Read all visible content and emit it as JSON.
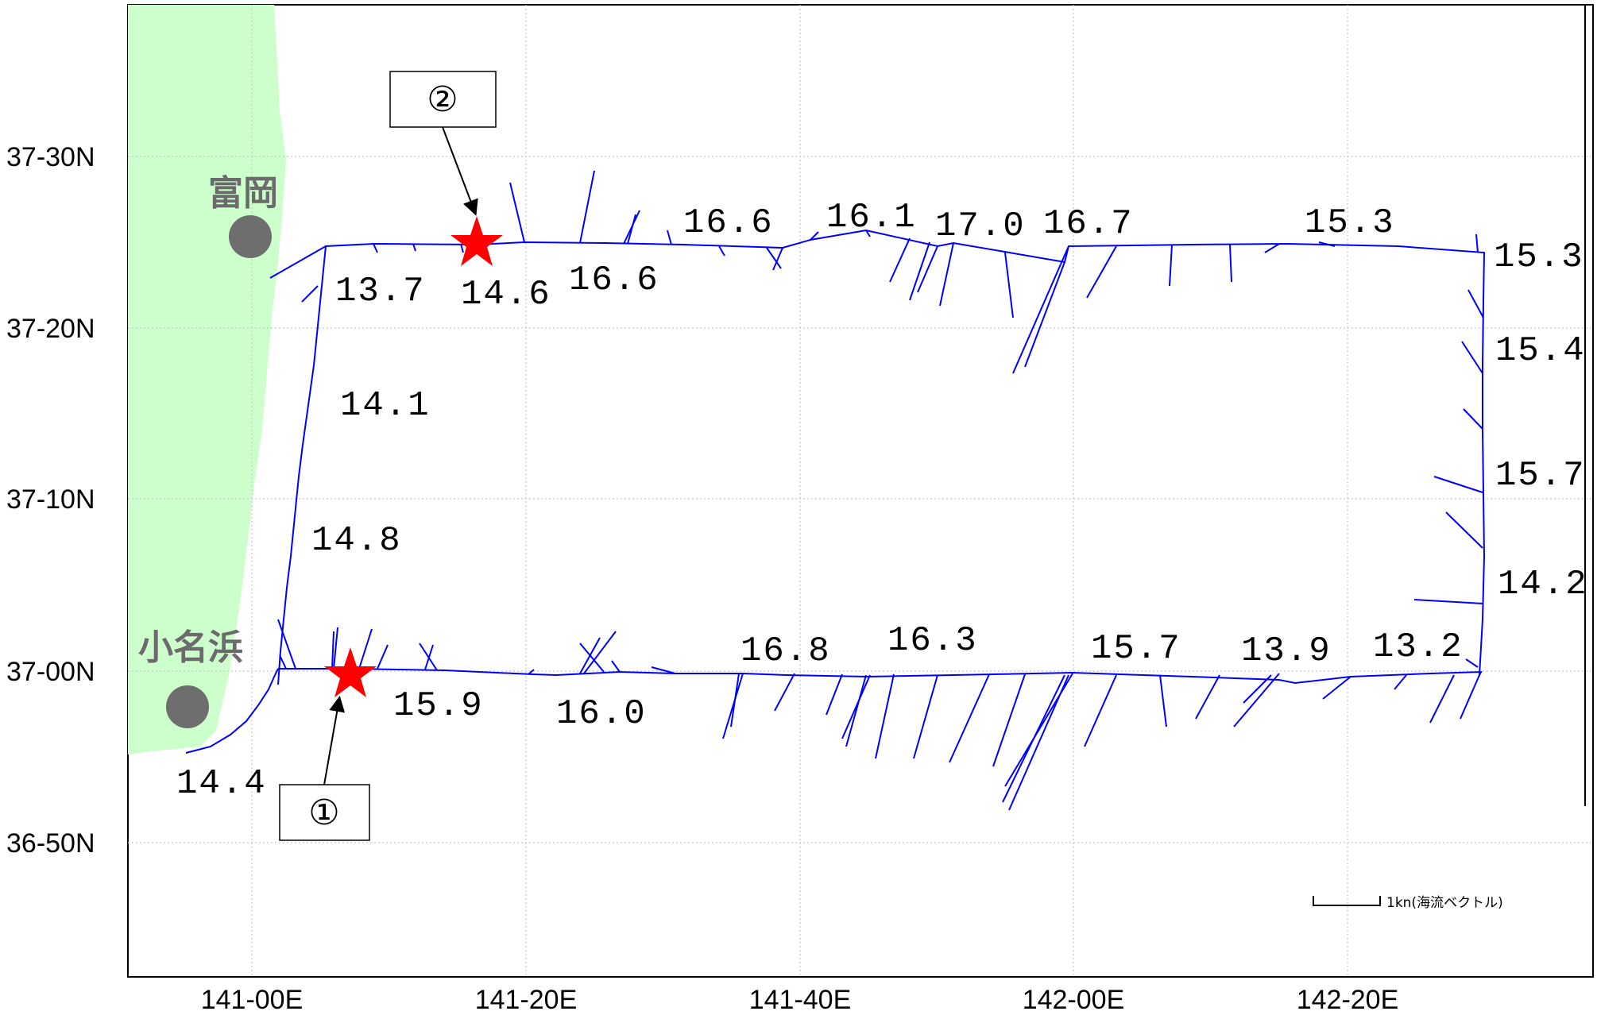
{
  "lat_labels": [
    "37-30N",
    "37-20N",
    "37-10N",
    "37-00N",
    "36-50N"
  ],
  "lon_labels": [
    "141-00E",
    "141-20E",
    "141-40E",
    "142-00E",
    "142-20E"
  ],
  "places": [
    {
      "name": "富岡"
    },
    {
      "name": "小名浜"
    }
  ],
  "markers": [
    {
      "label": "②"
    },
    {
      "label": "①"
    }
  ],
  "temperatures": {
    "north": [
      "13.7",
      "14.6",
      "16.6",
      "16.6",
      "16.1",
      "17.0",
      "16.7",
      "15.3"
    ],
    "east": [
      "15.3",
      "15.4",
      "15.7",
      "14.2"
    ],
    "south": [
      "13.2",
      "13.9",
      "15.7",
      "16.3",
      "16.8",
      "16.0",
      "15.9"
    ],
    "west": [
      "14.1",
      "14.8",
      "14.4"
    ]
  },
  "scale": {
    "label": "1kn(海流ベクトル)"
  },
  "colors": {
    "land": "#ccffcc",
    "track": "#0000ff",
    "star": "#ff0000",
    "place_dot": "#6e6e6e",
    "grid": "#c8c8c8"
  }
}
